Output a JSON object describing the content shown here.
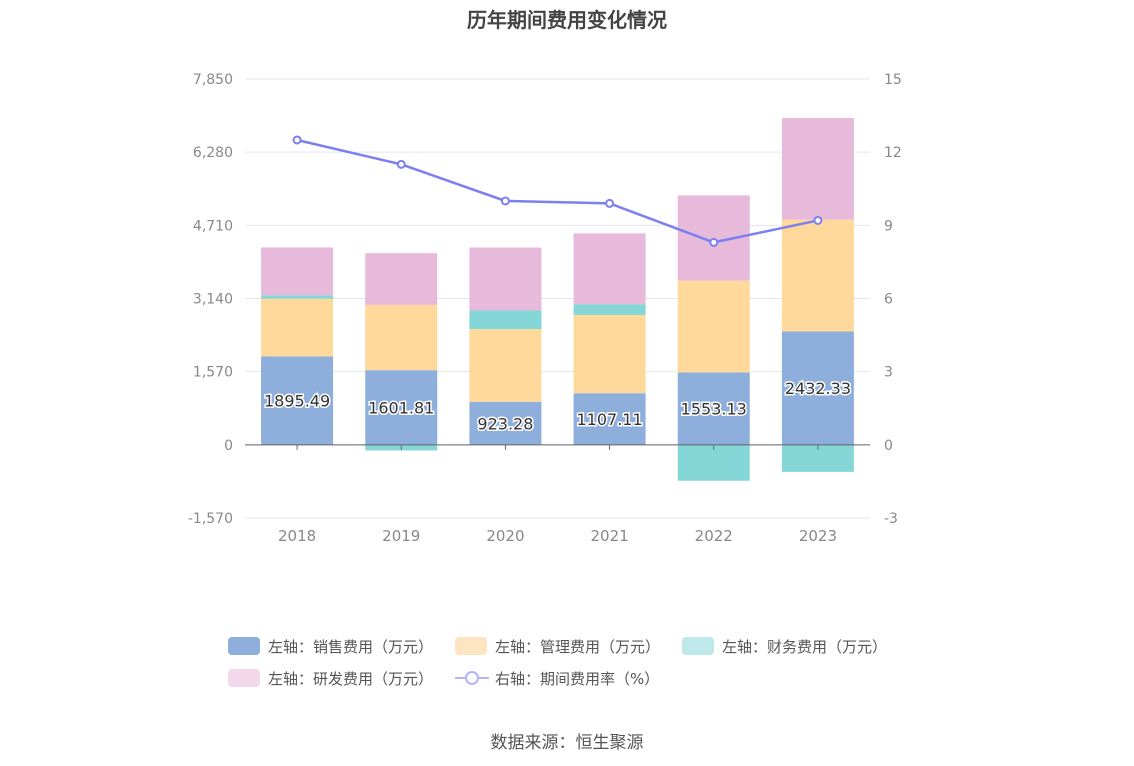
{
  "chart_data": {
    "type": "bar",
    "title": "历年期间费用变化情况",
    "categories": [
      "2018",
      "2019",
      "2020",
      "2021",
      "2022",
      "2023"
    ],
    "left_axis": {
      "ticks": [
        "7,850",
        "6,280",
        "4,710",
        "3,140",
        "1,570",
        "0",
        "-1,570"
      ],
      "ylim": [
        -1570,
        7850
      ]
    },
    "right_axis": {
      "ticks": [
        "15",
        "12",
        "9",
        "6",
        "3",
        "0",
        "-3"
      ],
      "ylim": [
        -3,
        15
      ]
    },
    "series": [
      {
        "name": "左轴：销售费用（万元）",
        "kind": "bar",
        "color": "#8eaedb",
        "values": [
          1895.49,
          1601.81,
          923.28,
          1107.11,
          1553.13,
          2432.33
        ],
        "labels": [
          "1895.49",
          "1601.81",
          "923.28",
          "1107.11",
          "1553.13",
          "2432.33"
        ]
      },
      {
        "name": "左轴：管理费用（万元）",
        "kind": "bar",
        "color": "#fed99b",
        "values": [
          1240,
          1400,
          1560,
          1680,
          1970,
          2400
        ]
      },
      {
        "name": "左轴：财务费用（万元）",
        "kind": "bar",
        "color": "#84d6d7",
        "values": [
          70,
          -120,
          400,
          230,
          -770,
          -580
        ]
      },
      {
        "name": "左轴：研发费用（万元）",
        "kind": "bar",
        "color": "#e7b9da",
        "values": [
          1030,
          1110,
          1350,
          1520,
          1830,
          2180
        ]
      },
      {
        "name": "右轴：期间费用率（%）",
        "kind": "line",
        "color": "#7b7fef",
        "values": [
          12.5,
          11.5,
          10.0,
          9.9,
          8.3,
          9.2
        ]
      }
    ],
    "grid": true,
    "legend_position": "bottom"
  },
  "source": "数据来源：恒生聚源"
}
